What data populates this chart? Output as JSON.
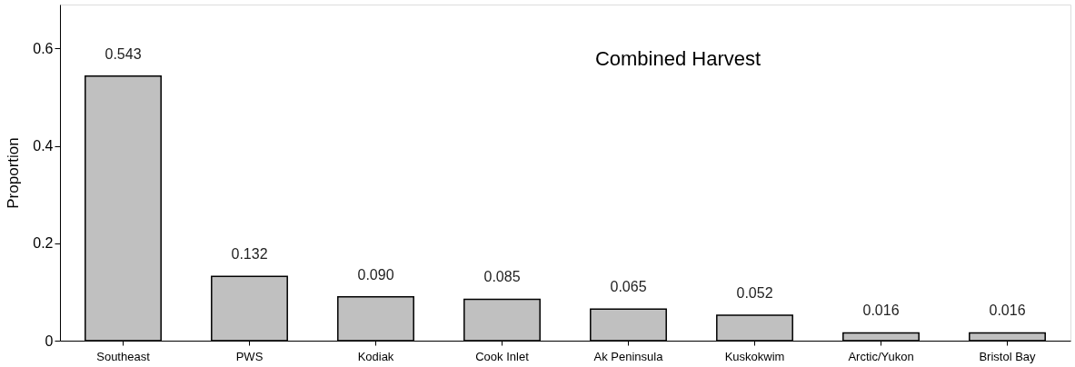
{
  "chart_data": {
    "type": "bar",
    "ylabel": "Proportion",
    "annotations": [
      "Combined Harvest"
    ],
    "categories": [
      "Southeast",
      "PWS",
      "Kodiak",
      "Cook Inlet",
      "Ak Peninsula",
      "Kuskokwim",
      "Arctic/Yukon",
      "Bristol Bay"
    ],
    "values": [
      0.543,
      0.132,
      0.09,
      0.085,
      0.065,
      0.052,
      0.016,
      0.016
    ],
    "value_labels": [
      "0.543",
      "0.132",
      "0.090",
      "0.085",
      "0.065",
      "0.052",
      "0.016",
      "0.016"
    ],
    "color": "#c0c0c0",
    "ylim": [
      0,
      0.69
    ],
    "yticks": [
      0,
      0.2,
      0.4,
      0.6
    ],
    "grid": false
  }
}
